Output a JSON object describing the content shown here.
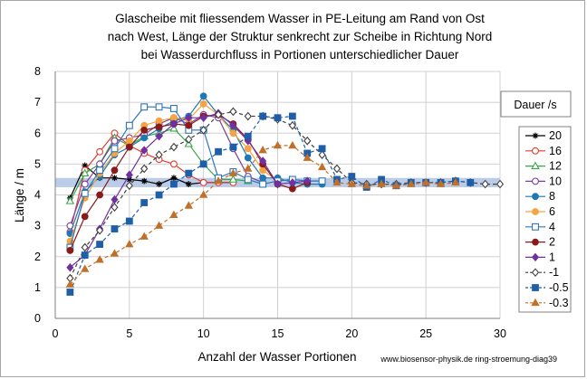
{
  "chart_data": {
    "type": "line",
    "title_lines": [
      "Glascheibe mit fliessendem Wasser in PE-Leitung am Rand von Ost",
      "nach West, Länge der Struktur senkrecht zur Scheibe in Richtung Nord",
      "bei Wasserdurchfluss in Portionen unterschiedlicher Dauer"
    ],
    "xlabel": "Anzahl der Wasser Portionen",
    "ylabel": "Länge / m",
    "xlim": [
      0,
      30
    ],
    "ylim": [
      0,
      8
    ],
    "xticks": [
      "0",
      "5",
      "10",
      "15",
      "20",
      "25",
      "30"
    ],
    "yticks": [
      "0",
      "1",
      "2",
      "3",
      "4",
      "5",
      "6",
      "7",
      "8"
    ],
    "grid": "major",
    "band": {
      "from": 4.25,
      "to": 4.55,
      "color": "#b4c7e7"
    },
    "legend_title": "Dauer /s",
    "legend_position": "right",
    "footnote": "www.biosensor-physik.de ring-stroemung-diag39",
    "series": [
      {
        "name": "20",
        "color": "#000000",
        "marker": "star",
        "dash": "solid",
        "x": [
          1,
          2,
          3,
          4,
          5,
          6,
          7,
          8,
          9,
          10,
          11,
          12
        ],
        "y": [
          3.9,
          4.95,
          4.55,
          4.55,
          4.5,
          4.45,
          4.35,
          4.55,
          4.35,
          4.4,
          4.4,
          4.4
        ]
      },
      {
        "name": "16",
        "color": "#e03c31",
        "marker": "circle-open",
        "dash": "solid",
        "x": [
          1,
          2,
          3,
          4,
          5,
          6,
          7,
          8,
          9,
          10,
          11,
          12
        ],
        "y": [
          2.8,
          4.8,
          5.4,
          6.0,
          5.6,
          5.35,
          5.15,
          5.0,
          4.65,
          4.4,
          4.4,
          4.4
        ]
      },
      {
        "name": "12",
        "color": "#3aa64c",
        "marker": "triangle-open",
        "dash": "solid",
        "x": [
          1,
          2,
          3,
          4,
          5,
          6,
          7,
          8,
          9,
          10,
          11,
          12,
          13
        ],
        "y": [
          3.8,
          4.7,
          5.0,
          5.85,
          5.6,
          5.9,
          6.0,
          6.15,
          5.65,
          5.0,
          4.5,
          4.5,
          4.45
        ]
      },
      {
        "name": "10",
        "color": "#7f3f98",
        "marker": "circle-open",
        "dash": "solid",
        "x": [
          1,
          2,
          3,
          4,
          5,
          6,
          7,
          8,
          9,
          10,
          11,
          12,
          13,
          14
        ],
        "y": [
          3.0,
          4.35,
          5.0,
          5.75,
          5.85,
          5.95,
          6.3,
          6.5,
          6.3,
          6.6,
          6.5,
          5.5,
          4.6,
          4.4
        ]
      },
      {
        "name": "8",
        "color": "#1f77b4",
        "marker": "circle",
        "dash": "solid",
        "x": [
          1,
          2,
          3,
          4,
          5,
          6,
          7,
          8,
          9,
          10,
          11,
          12,
          13,
          14,
          15,
          16,
          17,
          18
        ],
        "y": [
          2.75,
          4.1,
          4.6,
          5.3,
          5.55,
          5.85,
          6.15,
          6.4,
          6.55,
          7.2,
          6.6,
          6.1,
          5.2,
          4.55,
          4.55,
          4.4,
          4.35,
          4.35
        ]
      },
      {
        "name": "6",
        "color": "#f4a442",
        "marker": "circle",
        "dash": "solid",
        "x": [
          1,
          2,
          3,
          4,
          5,
          6,
          7,
          8,
          9,
          10,
          11,
          12,
          13,
          14,
          15,
          16
        ],
        "y": [
          2.5,
          3.9,
          4.7,
          5.35,
          5.75,
          6.25,
          6.4,
          6.5,
          6.45,
          6.95,
          6.6,
          6.0,
          5.5,
          4.8,
          4.45,
          4.5
        ]
      },
      {
        "name": "4",
        "color": "#2e75b6",
        "marker": "square-open",
        "dash": "solid",
        "x": [
          1,
          2,
          3,
          4,
          5,
          6,
          7,
          8,
          9,
          10,
          11,
          12,
          13,
          14,
          15,
          16,
          17,
          18
        ],
        "y": [
          2.3,
          4.05,
          4.8,
          5.5,
          6.25,
          6.85,
          6.85,
          6.8,
          6.1,
          6.1,
          4.55,
          4.75,
          4.5,
          4.35,
          4.45,
          4.5,
          4.45,
          4.45
        ]
      },
      {
        "name": "2",
        "color": "#8b1a1a",
        "marker": "circle",
        "dash": "solid",
        "x": [
          1,
          2,
          3,
          4,
          5,
          6,
          7,
          8,
          9,
          10,
          11,
          12,
          13,
          14,
          15,
          16,
          17
        ],
        "y": [
          2.2,
          3.3,
          4.0,
          4.8,
          5.55,
          6.1,
          6.2,
          6.3,
          6.25,
          6.55,
          6.6,
          6.3,
          5.8,
          5.0,
          4.35,
          4.2,
          4.4
        ]
      },
      {
        "name": "1",
        "color": "#7030a0",
        "marker": "diamond",
        "dash": "solid",
        "x": [
          1,
          2,
          3,
          4,
          5,
          6,
          7,
          8,
          9,
          10,
          11,
          12,
          13,
          14,
          15,
          16,
          17
        ],
        "y": [
          1.65,
          2.05,
          2.9,
          3.85,
          4.65,
          5.45,
          5.9,
          6.3,
          6.5,
          6.5,
          6.65,
          6.25,
          5.75,
          5.1,
          4.35,
          4.4,
          4.45
        ]
      },
      {
        "name": "-1",
        "color": "#404040",
        "marker": "diamond-open",
        "dash": "dash",
        "x": [
          1,
          2,
          3,
          4,
          5,
          6,
          7,
          8,
          9,
          10,
          11,
          12,
          13,
          14,
          15,
          16,
          17,
          18,
          19,
          20,
          21,
          22,
          23,
          24,
          25,
          26,
          27,
          28,
          29,
          30
        ],
        "y": [
          1.3,
          2.3,
          2.85,
          3.6,
          4.3,
          4.85,
          5.3,
          5.55,
          5.8,
          6.1,
          6.6,
          6.7,
          6.55,
          6.55,
          6.45,
          6.25,
          5.75,
          5.3,
          4.85,
          4.4,
          4.35,
          4.35,
          4.35,
          4.4,
          4.4,
          4.4,
          4.45,
          4.4,
          4.35,
          4.35
        ]
      },
      {
        "name": "-0.5",
        "color": "#1f5fa8",
        "marker": "square",
        "dash": "dash",
        "x": [
          1,
          2,
          3,
          4,
          5,
          6,
          7,
          8,
          9,
          10,
          11,
          12,
          13,
          14,
          15,
          16,
          17,
          18,
          19,
          20,
          21,
          22,
          23,
          24,
          25,
          26,
          27,
          28
        ],
        "y": [
          0.85,
          2.05,
          2.4,
          2.9,
          3.15,
          3.75,
          4.0,
          4.35,
          4.7,
          5.0,
          5.4,
          5.55,
          5.9,
          6.55,
          6.5,
          6.55,
          5.35,
          5.5,
          4.5,
          4.6,
          4.25,
          4.5,
          4.3,
          4.4,
          4.4,
          4.4,
          4.45,
          4.4
        ]
      },
      {
        "name": "-0.3",
        "color": "#c0702a",
        "marker": "triangle",
        "dash": "dash",
        "x": [
          1,
          2,
          3,
          4,
          5,
          6,
          7,
          8,
          9,
          10,
          11,
          12,
          13,
          14,
          15,
          16,
          17,
          18,
          19,
          20,
          21,
          22,
          23,
          24,
          25,
          26,
          27
        ],
        "y": [
          1.1,
          1.6,
          1.9,
          2.1,
          2.4,
          2.65,
          3.0,
          3.35,
          3.65,
          4.0,
          4.45,
          4.7,
          4.85,
          5.45,
          5.6,
          5.6,
          5.2,
          4.9,
          4.4,
          4.35,
          4.3,
          4.35,
          4.3,
          4.35,
          4.4,
          4.35,
          4.4
        ]
      }
    ]
  }
}
